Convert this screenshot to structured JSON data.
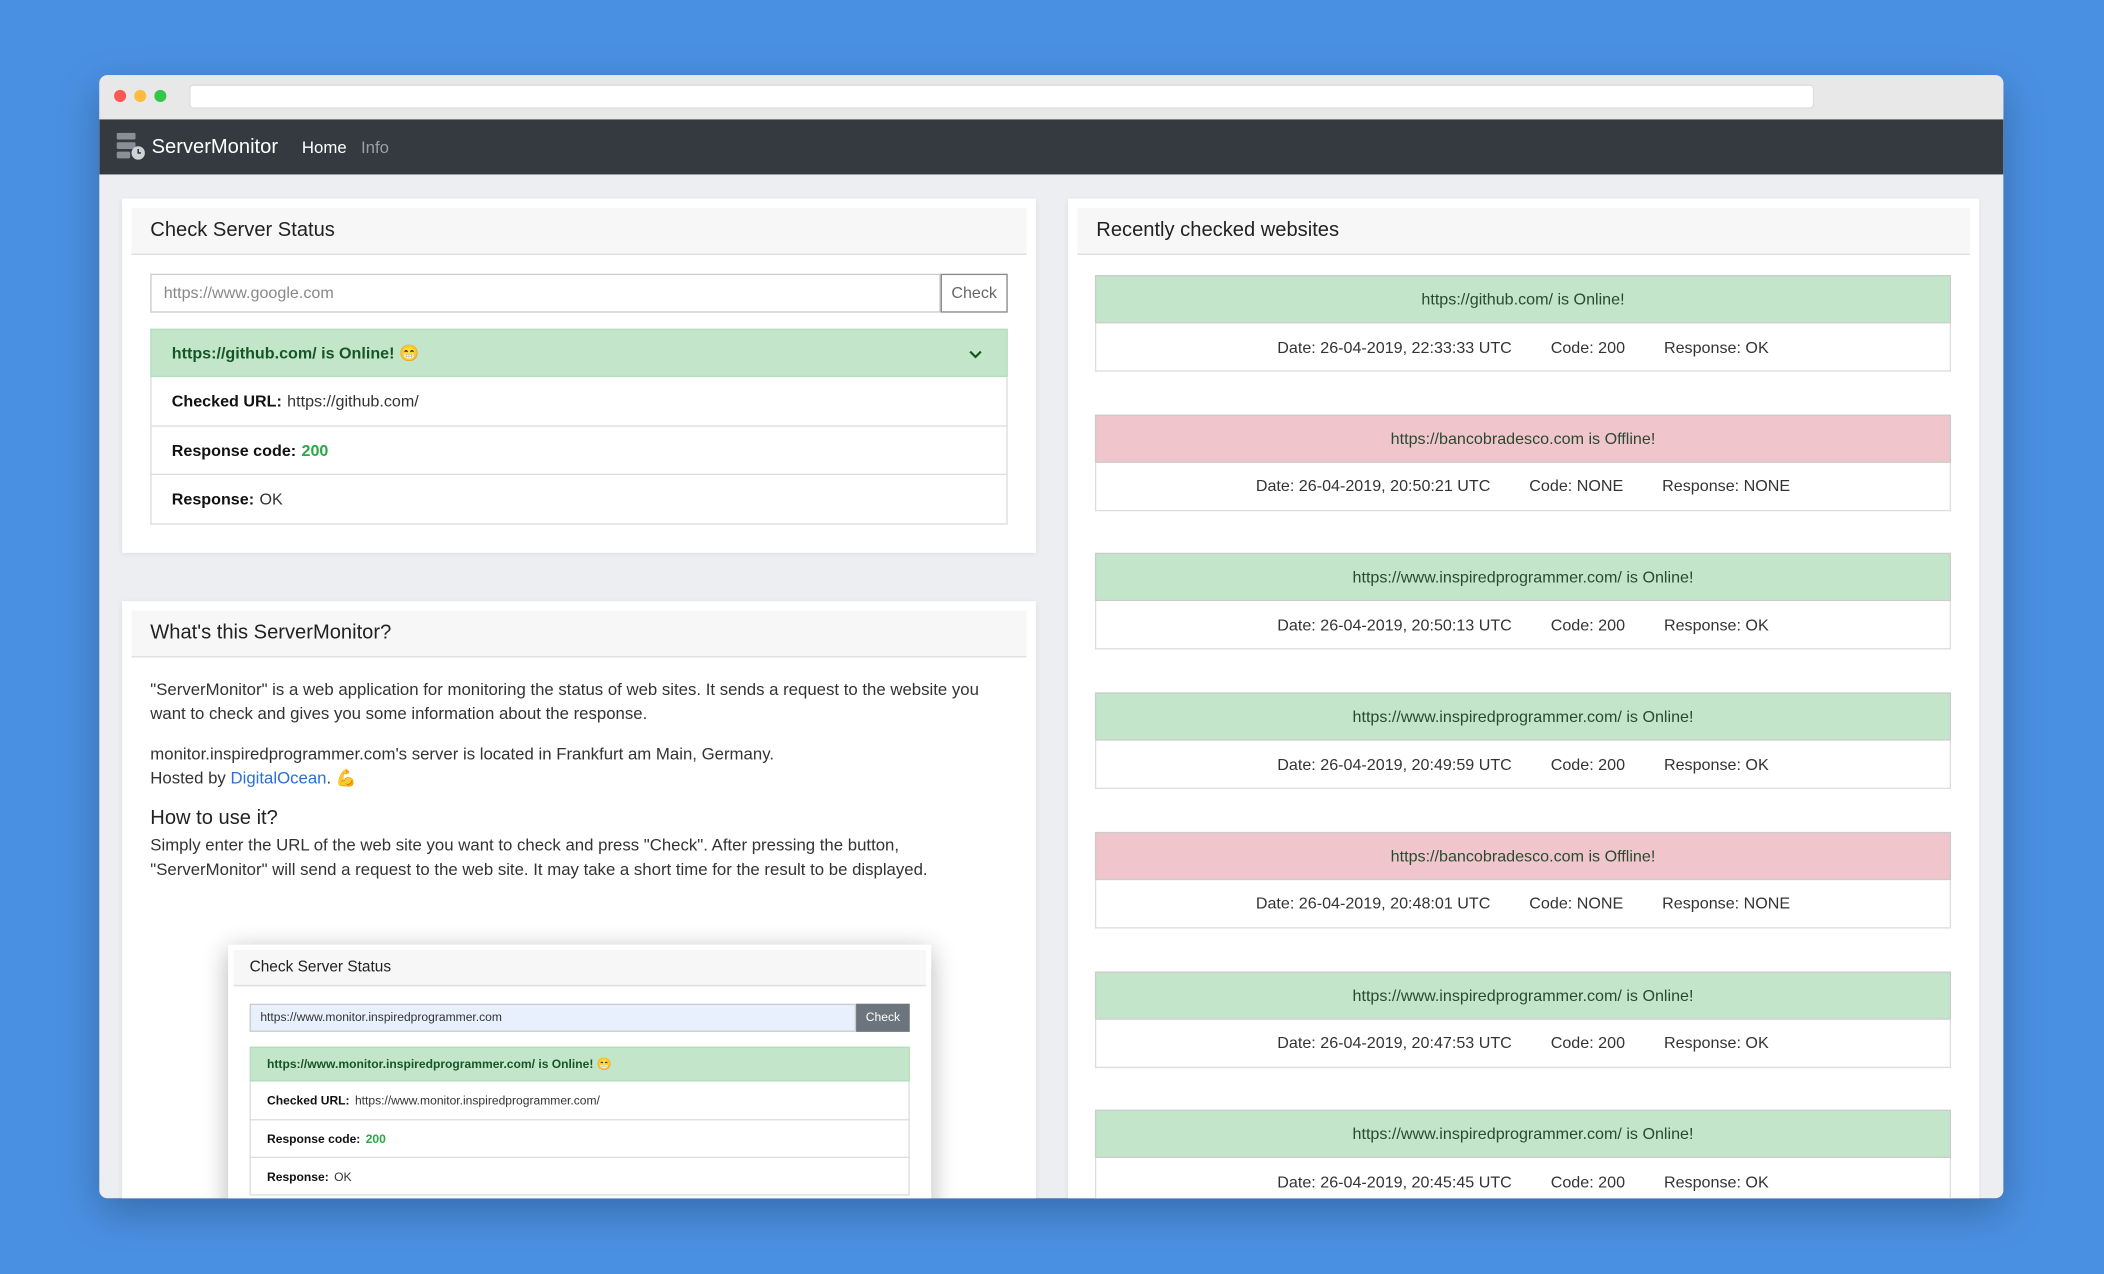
{
  "navbar": {
    "brand": "ServerMonitor",
    "links": [
      "Home",
      "Info"
    ]
  },
  "check_card": {
    "title": "Check Server Status",
    "placeholder": "https://www.google.com",
    "button": "Check",
    "result": {
      "header": "https://github.com/ is Online! 😁",
      "checked_url_label": "Checked URL:",
      "checked_url": "https://github.com/",
      "response_code_label": "Response code:",
      "response_code": "200",
      "response_label": "Response:",
      "response": "OK"
    }
  },
  "about_card": {
    "title": "What's this ServerMonitor?",
    "paragraph_1": "\"ServerMonitor\" is a web application for monitoring the status of web sites. It sends a request to the website you want to check and gives you some information about the response.",
    "paragraph_2": "monitor.inspiredprogrammer.com's server is located in Frankfurt am Main, Germany.",
    "hosted_by": "Hosted by",
    "hosted_link": "DigitalOcean",
    "hosted_end": ". 💪",
    "howto_title": "How to use it?",
    "paragraph_3": "Simply enter the URL of the web site you want to check and press \"Check\". After pressing the button, \"ServerMonitor\" will send a request to the web site. It may take a short time for the result to be displayed.",
    "inset": {
      "title": "Check Server Status",
      "input": "https://www.monitor.inspiredprogrammer.com",
      "button": "Check",
      "header": "https://www.monitor.inspiredprogrammer.com/ is Online! 😁",
      "checked_url_label": "Checked URL:",
      "checked_url": "https://www.monitor.inspiredprogrammer.com/",
      "response_code_label": "Response code:",
      "response_code": "200",
      "response_label": "Response:",
      "response": "OK"
    }
  },
  "recent_card": {
    "title": "Recently checked websites",
    "items": [
      {
        "status": "https://github.com/ is Online!",
        "color": "#c3e6cb",
        "date": "Date: 26-04-2019, 22:33:33 UTC",
        "code": "Code: 200",
        "response": "Response: OK"
      },
      {
        "status": "https://bancobradesco.com is Offline!",
        "color": "#f0c6cc",
        "date": "Date: 26-04-2019, 20:50:21 UTC",
        "code": "Code: NONE",
        "response": "Response: NONE"
      },
      {
        "status": "https://www.inspiredprogrammer.com/ is Online!",
        "color": "#c3e6cb",
        "date": "Date: 26-04-2019, 20:50:13 UTC",
        "code": "Code: 200",
        "response": "Response: OK"
      },
      {
        "status": "https://www.inspiredprogrammer.com/ is Online!",
        "color": "#c3e6cb",
        "date": "Date: 26-04-2019, 20:49:59 UTC",
        "code": "Code: 200",
        "response": "Response: OK"
      },
      {
        "status": "https://bancobradesco.com is Offline!",
        "color": "#f0c6cc",
        "date": "Date: 26-04-2019, 20:48:01 UTC",
        "code": "Code: NONE",
        "response": "Response: NONE"
      },
      {
        "status": "https://www.inspiredprogrammer.com/ is Online!",
        "color": "#c3e6cb",
        "date": "Date: 26-04-2019, 20:47:53 UTC",
        "code": "Code: 200",
        "response": "Response: OK"
      },
      {
        "status": "https://www.inspiredprogrammer.com/ is Online!",
        "color": "#c3e6cb",
        "date": "Date: 26-04-2019, 20:45:45 UTC",
        "code": "Code: 200",
        "response": "Response: OK"
      }
    ]
  }
}
